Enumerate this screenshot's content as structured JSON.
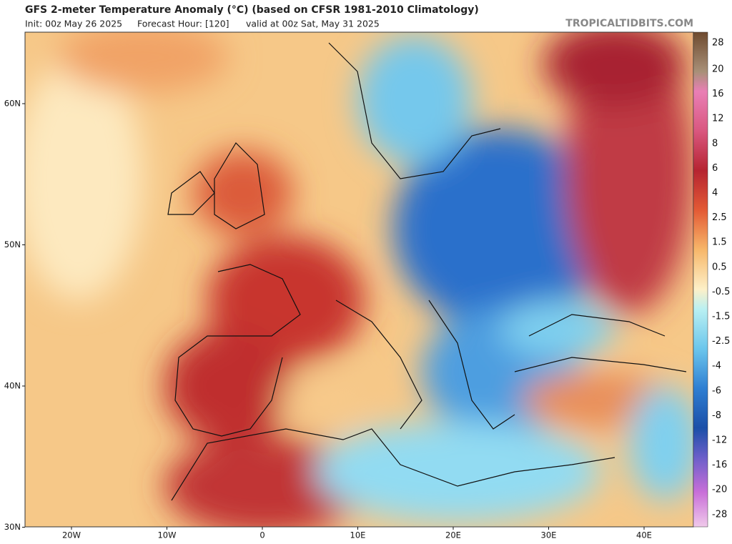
{
  "header": {
    "title": "GFS 2-meter Temperature Anomaly (°C) (based on CFSR 1981-2010 Climatology)",
    "init": "Init: 00z May 26 2025",
    "forecast_hour": "Forecast Hour: [120]",
    "valid": "valid at 00z Sat, May 31 2025",
    "watermark": "TROPICALTIDBITS.COM"
  },
  "map": {
    "lat_labels": [
      "60N",
      "50N",
      "40N",
      "30N"
    ],
    "lon_labels": [
      "20W",
      "10W",
      "0",
      "10E",
      "20E",
      "30E",
      "40E"
    ]
  },
  "colorbar": {
    "labels": [
      "28",
      "20",
      "16",
      "12",
      "8",
      "6",
      "4",
      "2.5",
      "1.5",
      "0.5",
      "-0.5",
      "-1.5",
      "-2.5",
      "-4",
      "-6",
      "-8",
      "-12",
      "-16",
      "-20",
      "-28"
    ]
  }
}
